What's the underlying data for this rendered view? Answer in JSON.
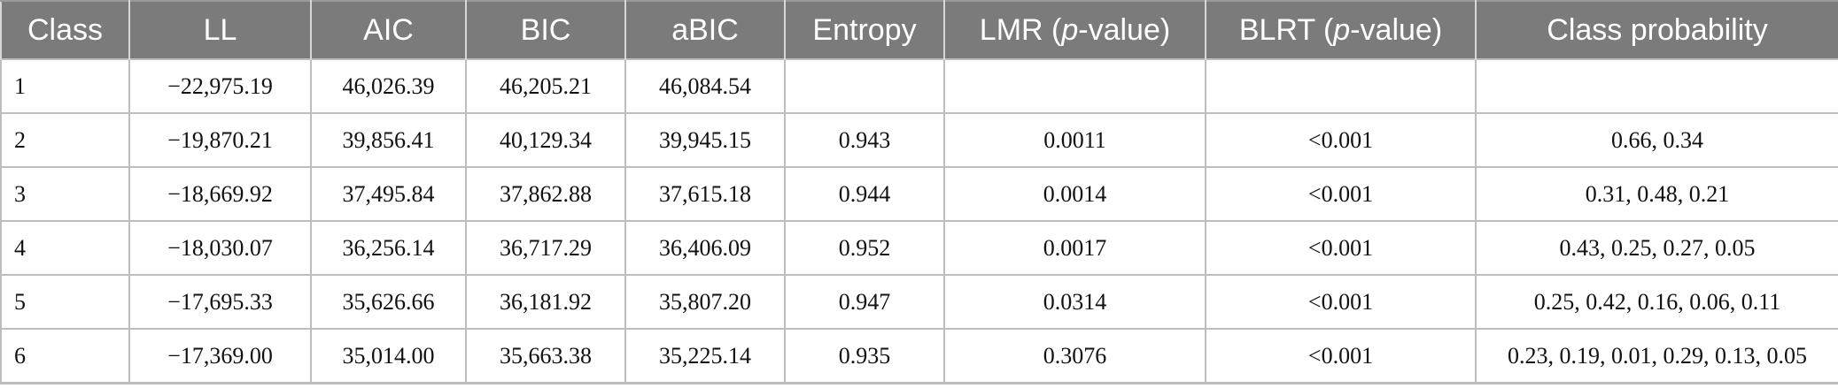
{
  "table": {
    "headers": {
      "class": "Class",
      "ll": "LL",
      "aic": "AIC",
      "bic": "BIC",
      "abic": "aBIC",
      "entropy": "Entropy",
      "lmr_prefix": "LMR (",
      "lmr_p": "p",
      "lmr_suffix": "-value)",
      "blrt_prefix": "BLRT (",
      "blrt_p": "p",
      "blrt_suffix": "-value)",
      "class_probability": "Class probability"
    },
    "rows": [
      {
        "class": "1",
        "ll": "−22,975.19",
        "aic": "46,026.39",
        "bic": "46,205.21",
        "abic": "46,084.54",
        "entropy": "",
        "lmr": "",
        "blrt": "",
        "prob": ""
      },
      {
        "class": "2",
        "ll": "−19,870.21",
        "aic": "39,856.41",
        "bic": "40,129.34",
        "abic": "39,945.15",
        "entropy": "0.943",
        "lmr": "0.0011",
        "blrt": "<0.001",
        "prob": "0.66, 0.34"
      },
      {
        "class": "3",
        "ll": "−18,669.92",
        "aic": "37,495.84",
        "bic": "37,862.88",
        "abic": "37,615.18",
        "entropy": "0.944",
        "lmr": "0.0014",
        "blrt": "<0.001",
        "prob": "0.31, 0.48, 0.21"
      },
      {
        "class": "4",
        "ll": "−18,030.07",
        "aic": "36,256.14",
        "bic": "36,717.29",
        "abic": "36,406.09",
        "entropy": "0.952",
        "lmr": "0.0017",
        "blrt": "<0.001",
        "prob": "0.43, 0.25, 0.27, 0.05"
      },
      {
        "class": "5",
        "ll": "−17,695.33",
        "aic": "35,626.66",
        "bic": "36,181.92",
        "abic": "35,807.20",
        "entropy": "0.947",
        "lmr": "0.0314",
        "blrt": "<0.001",
        "prob": "0.25, 0.42, 0.16, 0.06, 0.11"
      },
      {
        "class": "6",
        "ll": "−17,369.00",
        "aic": "35,014.00",
        "bic": "35,663.38",
        "abic": "35,225.14",
        "entropy": "0.935",
        "lmr": "0.3076",
        "blrt": "<0.001",
        "prob": "0.23, 0.19, 0.01, 0.29, 0.13, 0.05"
      }
    ]
  },
  "colors": {
    "header_bg": "#7b7b7b",
    "header_text": "#ffffff",
    "grid": "#bdbdbd"
  }
}
